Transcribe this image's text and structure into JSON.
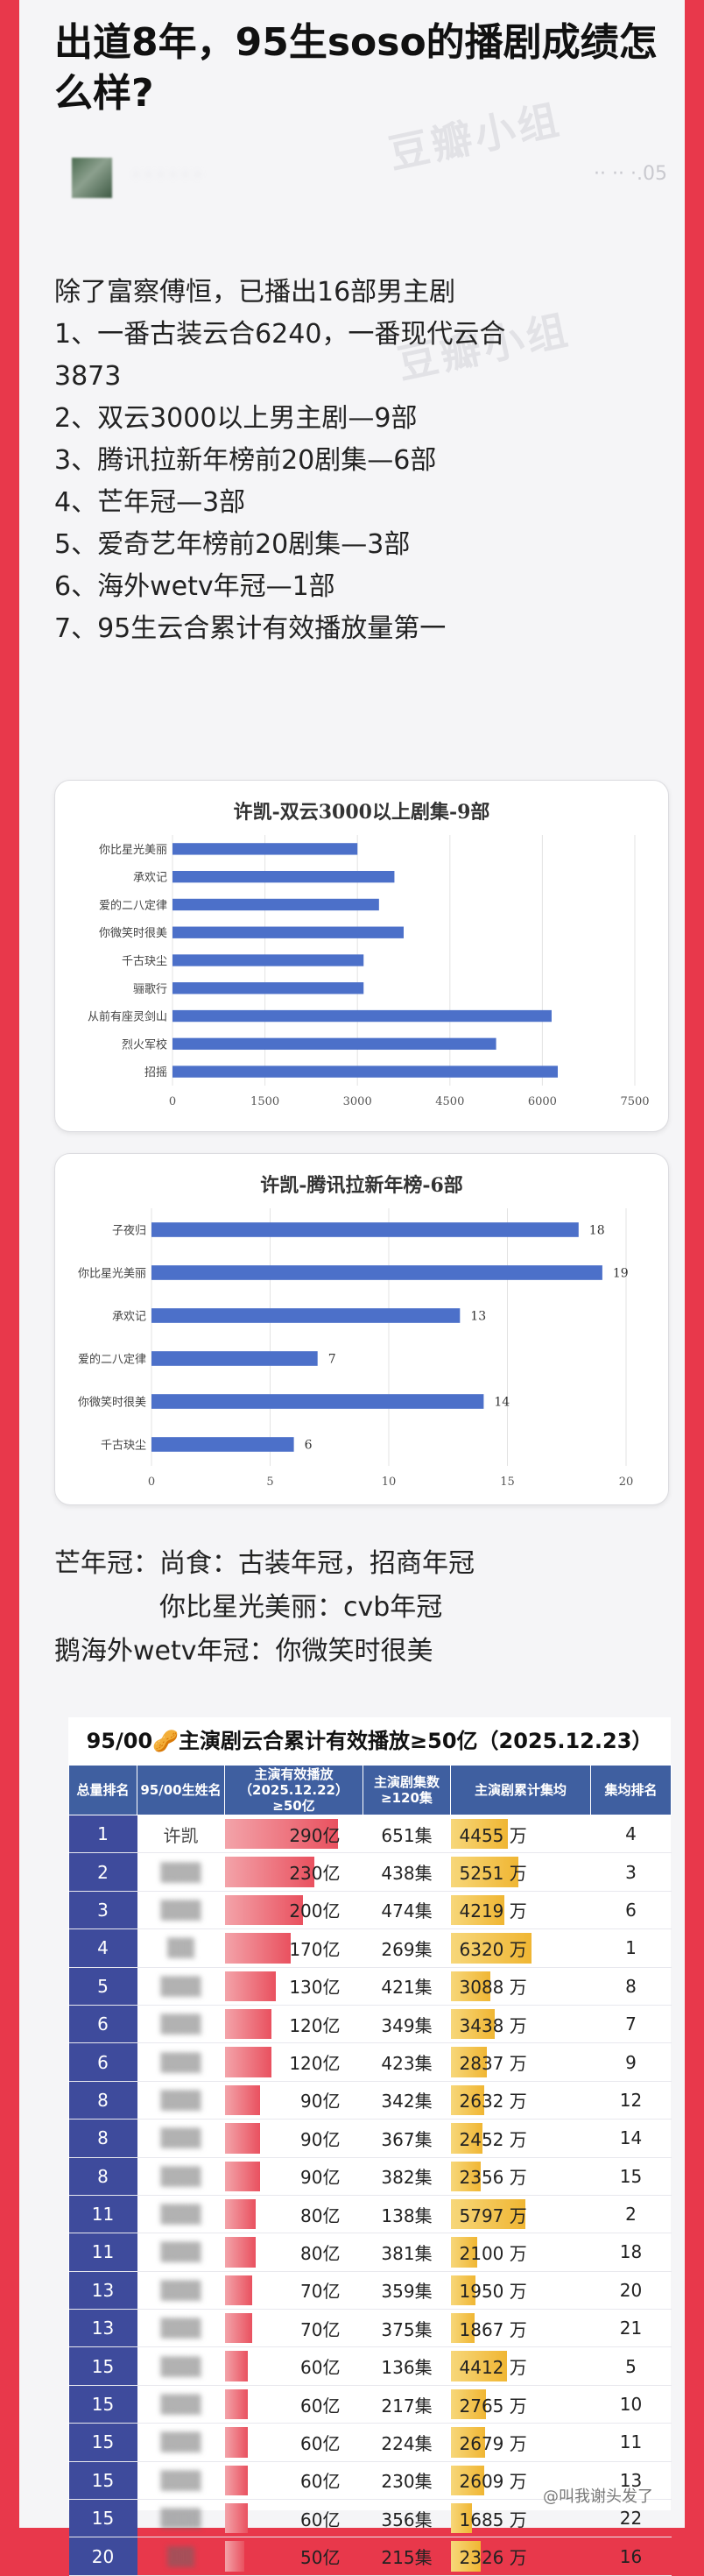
{
  "post": {
    "title": "出道8年，95生soso的播剧成绩怎么样?",
    "author_blurred": "· · · · · ·",
    "date": "·· ·· ·.05",
    "watermark": "豆瓣小组"
  },
  "body_lines": [
    "除了富察傅恒，已播出16部男主剧",
    "1、一番古装云合6240，一番现代云合",
    "3873",
    "2、双云3000以上男主剧—9部",
    "3、腾讯拉新年榜前20剧集—6部",
    "4、芒年冠—3部",
    "5、爱奇艺年榜前20剧集—3部",
    "6、海外wetv年冠—1部",
    "7、95生云合累计有效播放量第一"
  ],
  "chart1": {
    "title": "许凯-双云3000以上剧集-9部",
    "categories": [
      "你比星光美丽",
      "承欢记",
      "爱的二八定律",
      "你微笑时很美",
      "千古玦尘",
      "骊歌行",
      "从前有座灵剑山",
      "烈火军校",
      "招摇"
    ],
    "values": [
      3000,
      3600,
      3350,
      3750,
      3100,
      3100,
      6150,
      5250,
      6250
    ],
    "xticks": [
      "0",
      "1500",
      "3000",
      "4500",
      "6000",
      "7500"
    ],
    "xmax": 7500,
    "bar_color": "#4c70c9"
  },
  "chart2": {
    "title": "许凯-腾讯拉新年榜-6部",
    "categories": [
      "子夜归",
      "你比星光美丽",
      "承欢记",
      "爱的二八定律",
      "你微笑时很美",
      "千古玦尘"
    ],
    "values": [
      18,
      19,
      13,
      7,
      14,
      6
    ],
    "labels": [
      "18",
      "19",
      "13",
      "7",
      "14",
      "6"
    ],
    "xticks": [
      "0",
      "5",
      "10",
      "15",
      "20"
    ],
    "xmax": 20,
    "bar_color": "#4c70c9"
  },
  "chart_data": [
    {
      "type": "bar",
      "orientation": "horizontal",
      "title": "许凯-双云3000以上剧集-9部",
      "categories": [
        "你比星光美丽",
        "承欢记",
        "爱的二八定律",
        "你微笑时很美",
        "千古玦尘",
        "骊歌行",
        "从前有座灵剑山",
        "烈火军校",
        "招摇"
      ],
      "values": [
        3000,
        3600,
        3350,
        3750,
        3100,
        3100,
        6150,
        5250,
        6250
      ],
      "xlim": [
        0,
        7500
      ],
      "grid": true
    },
    {
      "type": "bar",
      "orientation": "horizontal",
      "title": "许凯-腾讯拉新年榜-6部",
      "categories": [
        "子夜归",
        "你比星光美丽",
        "承欢记",
        "爱的二八定律",
        "你微笑时很美",
        "千古玦尘"
      ],
      "values": [
        18,
        19,
        13,
        7,
        14,
        6
      ],
      "xlim": [
        0,
        20
      ],
      "grid": true
    }
  ],
  "crown_lines": [
    "芒年冠：尚食：古装年冠，招商年冠",
    "　　　　你比星光美丽：cvb年冠",
    "鹅海外wetv年冠：你微笑时很美"
  ],
  "table": {
    "title": "95/00🥜主演剧云合累计有效播放≥50亿（2025.12.23）",
    "headers": [
      "总量排名",
      "95/00生姓名",
      "主演有效播放（2025.12.22）≥50亿",
      "主演剧集数≥120集",
      "主演剧累计集均",
      "集均排名"
    ],
    "rows": [
      {
        "rank": "1",
        "name": "许凯",
        "blur": false,
        "plays": "290亿",
        "pv": 290,
        "eps": "651集",
        "avg": "4455 万",
        "av": 4455,
        "arank": "4"
      },
      {
        "rank": "2",
        "name": "▒▒▒",
        "blur": true,
        "plays": "230亿",
        "pv": 230,
        "eps": "438集",
        "avg": "5251 万",
        "av": 5251,
        "arank": "3"
      },
      {
        "rank": "3",
        "name": "▒▒▒",
        "blur": true,
        "plays": "200亿",
        "pv": 200,
        "eps": "474集",
        "avg": "4219 万",
        "av": 4219,
        "arank": "6"
      },
      {
        "rank": "4",
        "name": "▒▒",
        "blur": true,
        "plays": "170亿",
        "pv": 170,
        "eps": "269集",
        "avg": "6320 万",
        "av": 6320,
        "arank": "1"
      },
      {
        "rank": "5",
        "name": "▒▒▒",
        "blur": true,
        "plays": "130亿",
        "pv": 130,
        "eps": "421集",
        "avg": "3088 万",
        "av": 3088,
        "arank": "8"
      },
      {
        "rank": "6",
        "name": "▒▒▒",
        "blur": true,
        "plays": "120亿",
        "pv": 120,
        "eps": "349集",
        "avg": "3438 万",
        "av": 3438,
        "arank": "7"
      },
      {
        "rank": "6",
        "name": "▒▒▒",
        "blur": true,
        "plays": "120亿",
        "pv": 120,
        "eps": "423集",
        "avg": "2837 万",
        "av": 2837,
        "arank": "9"
      },
      {
        "rank": "8",
        "name": "▒▒▒",
        "blur": true,
        "plays": "90亿",
        "pv": 90,
        "eps": "342集",
        "avg": "2632 万",
        "av": 2632,
        "arank": "12"
      },
      {
        "rank": "8",
        "name": "▒▒▒",
        "blur": true,
        "plays": "90亿",
        "pv": 90,
        "eps": "367集",
        "avg": "2452 万",
        "av": 2452,
        "arank": "14"
      },
      {
        "rank": "8",
        "name": "▒▒▒",
        "blur": true,
        "plays": "90亿",
        "pv": 90,
        "eps": "382集",
        "avg": "2356 万",
        "av": 2356,
        "arank": "15"
      },
      {
        "rank": "11",
        "name": "▒▒▒",
        "blur": true,
        "plays": "80亿",
        "pv": 80,
        "eps": "138集",
        "avg": "5797 万",
        "av": 5797,
        "arank": "2"
      },
      {
        "rank": "11",
        "name": "▒▒▒",
        "blur": true,
        "plays": "80亿",
        "pv": 80,
        "eps": "381集",
        "avg": "2100 万",
        "av": 2100,
        "arank": "18"
      },
      {
        "rank": "13",
        "name": "▒▒▒",
        "blur": true,
        "plays": "70亿",
        "pv": 70,
        "eps": "359集",
        "avg": "1950 万",
        "av": 1950,
        "arank": "20"
      },
      {
        "rank": "13",
        "name": "▒▒▒",
        "blur": true,
        "plays": "70亿",
        "pv": 70,
        "eps": "375集",
        "avg": "1867 万",
        "av": 1867,
        "arank": "21"
      },
      {
        "rank": "15",
        "name": "▒▒▒",
        "blur": true,
        "plays": "60亿",
        "pv": 60,
        "eps": "136集",
        "avg": "4412 万",
        "av": 4412,
        "arank": "5"
      },
      {
        "rank": "15",
        "name": "▒▒▒",
        "blur": true,
        "plays": "60亿",
        "pv": 60,
        "eps": "217集",
        "avg": "2765 万",
        "av": 2765,
        "arank": "10"
      },
      {
        "rank": "15",
        "name": "▒▒▒",
        "blur": true,
        "plays": "60亿",
        "pv": 60,
        "eps": "224集",
        "avg": "2679 万",
        "av": 2679,
        "arank": "11"
      },
      {
        "rank": "15",
        "name": "▒▒▒",
        "blur": true,
        "plays": "60亿",
        "pv": 60,
        "eps": "230集",
        "avg": "2609 万",
        "av": 2609,
        "arank": "13"
      },
      {
        "rank": "15",
        "name": "▒▒▒",
        "blur": true,
        "plays": "60亿",
        "pv": 60,
        "eps": "356集",
        "avg": "1685 万",
        "av": 1685,
        "arank": "22"
      },
      {
        "rank": "20",
        "name": "▒▒",
        "blur": true,
        "plays": "50亿",
        "pv": 50,
        "eps": "215集",
        "avg": "2326 万",
        "av": 2326,
        "arank": "16"
      }
    ],
    "caption": "@叫我谢头发了",
    "play_max": 290,
    "avg_max": 6320
  }
}
